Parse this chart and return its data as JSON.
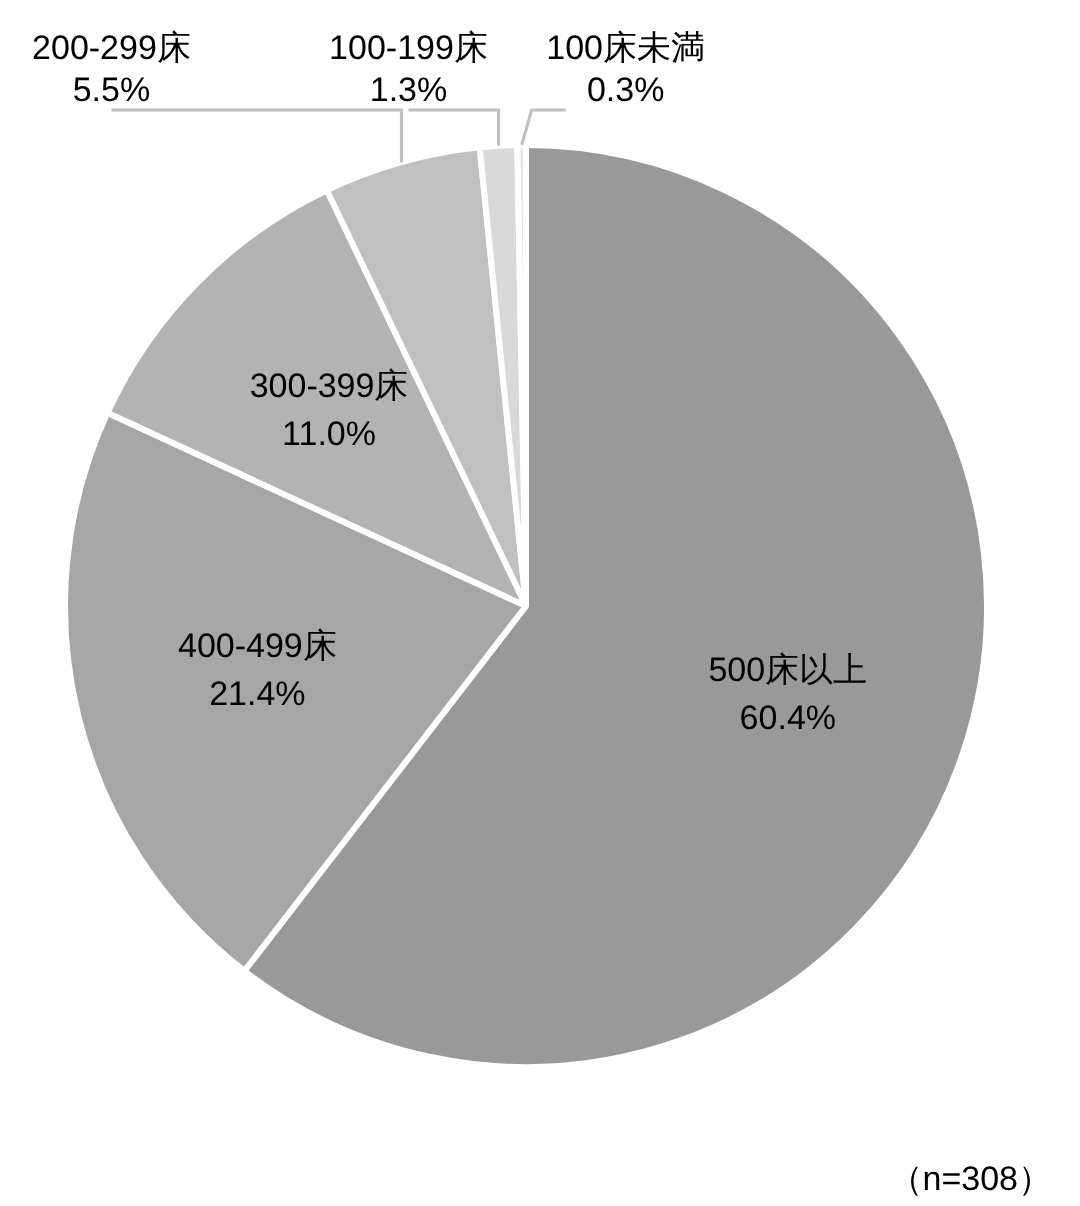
{
  "chart_data": {
    "type": "pie",
    "categories": [
      "500床以上",
      "400-499床",
      "300-399床",
      "200-299床",
      "100-199床",
      "100床未満"
    ],
    "values": [
      60.4,
      21.4,
      11.0,
      5.5,
      1.3,
      0.3
    ],
    "value_labels": [
      "60.4%",
      "21.4%",
      "11.0%",
      "5.5%",
      "1.3%",
      "0.3%"
    ],
    "colors": [
      "#999999",
      "#a6a6a6",
      "#b3b3b3",
      "#c0c0c0",
      "#d9d9d9",
      "#e6e6e6"
    ],
    "legend": false,
    "annotations": [
      "（n=308）"
    ]
  }
}
